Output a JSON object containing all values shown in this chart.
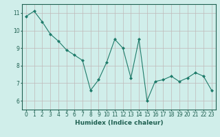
{
  "x": [
    0,
    1,
    2,
    3,
    4,
    5,
    6,
    7,
    8,
    9,
    10,
    11,
    12,
    13,
    14,
    15,
    16,
    17,
    18,
    19,
    20,
    21,
    22,
    23
  ],
  "y": [
    10.8,
    11.1,
    10.5,
    9.8,
    9.4,
    8.9,
    8.6,
    8.3,
    6.6,
    7.2,
    8.2,
    9.5,
    9.0,
    7.3,
    9.5,
    6.0,
    7.1,
    7.2,
    7.4,
    7.1,
    7.3,
    7.6,
    7.4,
    6.6
  ],
  "line_color": "#1e7b6a",
  "marker": "D",
  "marker_size": 2.0,
  "bg_color": "#d0eeea",
  "grid_color": "#c0b8b8",
  "xlabel": "Humidex (Indice chaleur)",
  "xlim": [
    -0.5,
    23.5
  ],
  "ylim": [
    5.5,
    11.5
  ],
  "yticks": [
    6,
    7,
    8,
    9,
    10,
    11
  ],
  "xticks": [
    0,
    1,
    2,
    3,
    4,
    5,
    6,
    7,
    8,
    9,
    10,
    11,
    12,
    13,
    14,
    15,
    16,
    17,
    18,
    19,
    20,
    21,
    22,
    23
  ],
  "tick_color": "#1e5f50",
  "label_fontsize": 5.5,
  "axis_fontsize": 6.5,
  "spine_color": "#1e5f50",
  "linewidth": 0.8
}
